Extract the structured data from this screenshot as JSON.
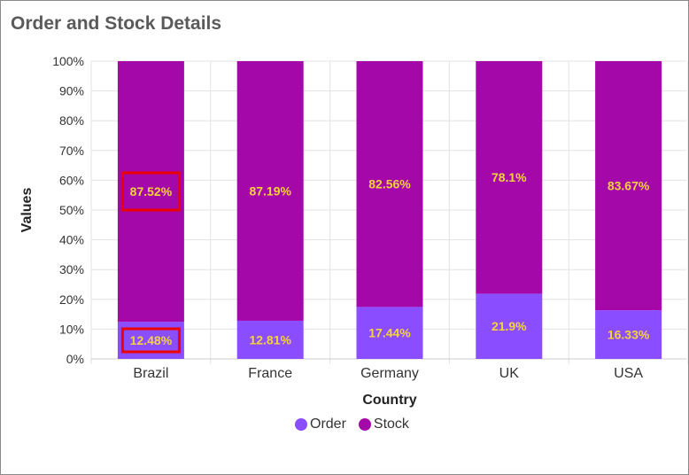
{
  "header": {
    "title": "Order and Stock Details"
  },
  "colors": {
    "order": "#8a4dff",
    "stock": "#a508a8",
    "label": "#f5d33a",
    "highlight": "#ee0000",
    "grid": "#e3e3e3"
  },
  "chart_data": {
    "type": "bar",
    "stacked": "percent",
    "title": "Order and Stock Details",
    "xlabel": "Country",
    "ylabel": "Values",
    "categories": [
      "Brazil",
      "France",
      "Germany",
      "UK",
      "USA"
    ],
    "series": [
      {
        "name": "Order",
        "values": [
          12.48,
          12.81,
          17.44,
          21.9,
          16.33
        ],
        "labels": [
          "12.48%",
          "12.81%",
          "17.44%",
          "21.9%",
          "16.33%"
        ]
      },
      {
        "name": "Stock",
        "values": [
          87.52,
          87.19,
          82.56,
          78.1,
          83.67
        ],
        "labels": [
          "87.52%",
          "87.19%",
          "82.56%",
          "78.1%",
          "83.67%"
        ]
      }
    ],
    "ylim": [
      0,
      100
    ],
    "yticks": [
      "0%",
      "10%",
      "20%",
      "30%",
      "40%",
      "50%",
      "60%",
      "70%",
      "80%",
      "90%",
      "100%"
    ],
    "grid": true,
    "legend_position": "bottom",
    "highlighted_labels": [
      {
        "series": "Stock",
        "category": "Brazil"
      },
      {
        "series": "Order",
        "category": "Brazil"
      }
    ]
  }
}
